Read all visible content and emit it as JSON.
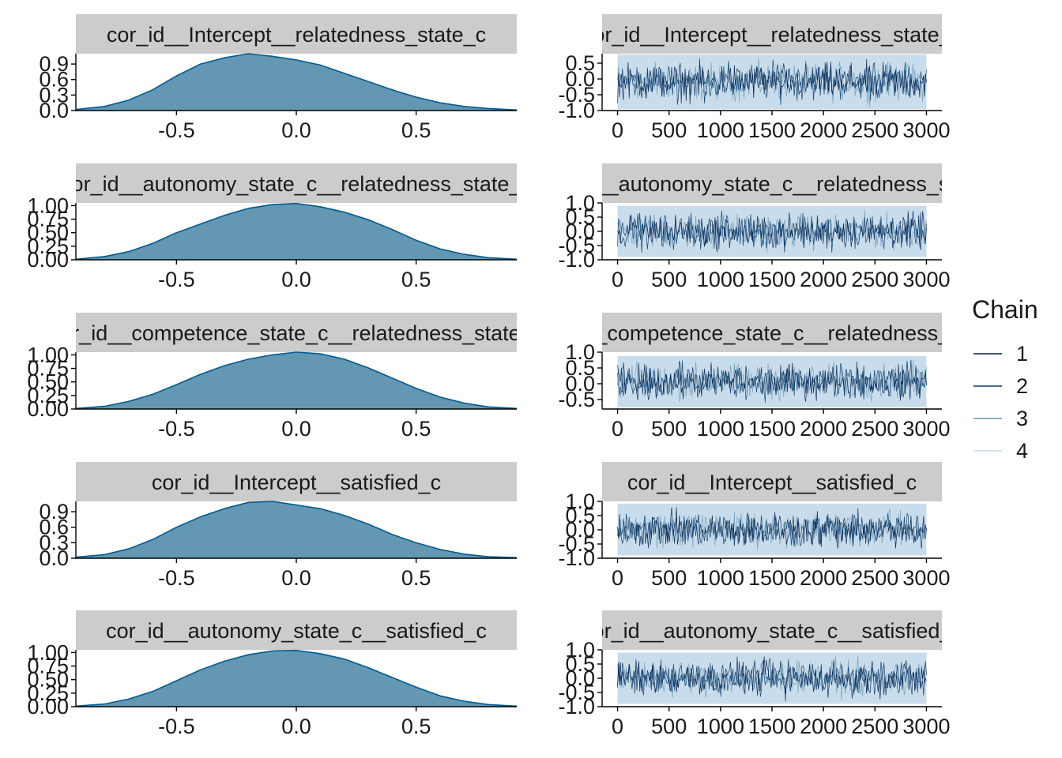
{
  "legend": {
    "title": "Chain",
    "items": [
      {
        "label": "1",
        "color": "#011f4b"
      },
      {
        "label": "2",
        "color": "#03396c"
      },
      {
        "label": "3",
        "color": "#6497b1"
      },
      {
        "label": "4",
        "color": "#c9dceb"
      }
    ]
  },
  "colors": {
    "density_fill": "#6497b1",
    "density_line": "#005b96",
    "strip_bg": "#cccccc"
  },
  "chart_data": [
    {
      "type": "area",
      "title": "cor_id__Intercept__relatedness_state_c",
      "xlim": [
        -0.92,
        0.92
      ],
      "ylim": [
        0,
        1.1
      ],
      "x_ticks": [
        {
          "v": -0.5,
          "label": "-0.5"
        },
        {
          "v": 0.0,
          "label": "0.0"
        },
        {
          "v": 0.5,
          "label": "0.5"
        }
      ],
      "y_ticks": [
        {
          "v": 0.0,
          "label": "0.0"
        },
        {
          "v": 0.3,
          "label": "0.3"
        },
        {
          "v": 0.6,
          "label": "0.6"
        },
        {
          "v": 0.9,
          "label": "0.9"
        }
      ],
      "x": [
        -0.92,
        -0.8,
        -0.7,
        -0.6,
        -0.5,
        -0.4,
        -0.3,
        -0.2,
        -0.1,
        0.0,
        0.1,
        0.2,
        0.3,
        0.4,
        0.5,
        0.6,
        0.7,
        0.8,
        0.92
      ],
      "y": [
        0.02,
        0.08,
        0.2,
        0.4,
        0.67,
        0.9,
        1.02,
        1.1,
        1.05,
        0.98,
        0.88,
        0.72,
        0.56,
        0.4,
        0.26,
        0.15,
        0.08,
        0.04,
        0.01
      ]
    },
    {
      "type": "line",
      "title": "cor_id__Intercept__relatedness_state_c",
      "xlim": [
        -150,
        3150
      ],
      "ylim": [
        -1.0,
        0.8
      ],
      "x_ticks": [
        {
          "v": 0,
          "label": "0"
        },
        {
          "v": 500,
          "label": "500"
        },
        {
          "v": 1000,
          "label": "1000"
        },
        {
          "v": 1500,
          "label": "1500"
        },
        {
          "v": 2000,
          "label": "2000"
        },
        {
          "v": 2500,
          "label": "2500"
        },
        {
          "v": 3000,
          "label": "3000"
        }
      ],
      "y_ticks": [
        {
          "v": -1.0,
          "label": "-1.0"
        },
        {
          "v": -0.5,
          "label": "-0.5"
        },
        {
          "v": 0.0,
          "label": "0.0"
        },
        {
          "v": 0.5,
          "label": "0.5"
        }
      ],
      "band": [
        -0.95,
        0.78
      ]
    },
    {
      "type": "area",
      "title": "cor_id__autonomy_state_c__relatedness_state_c",
      "xlim": [
        -0.92,
        0.92
      ],
      "ylim": [
        0,
        1.05
      ],
      "x_ticks": [
        {
          "v": -0.5,
          "label": "-0.5"
        },
        {
          "v": 0.0,
          "label": "0.0"
        },
        {
          "v": 0.5,
          "label": "0.5"
        }
      ],
      "y_ticks": [
        {
          "v": 0.0,
          "label": "0.00"
        },
        {
          "v": 0.25,
          "label": "0.25"
        },
        {
          "v": 0.5,
          "label": "0.50"
        },
        {
          "v": 0.75,
          "label": "0.75"
        },
        {
          "v": 1.0,
          "label": "1.00"
        }
      ],
      "x": [
        -0.92,
        -0.8,
        -0.7,
        -0.6,
        -0.5,
        -0.4,
        -0.3,
        -0.2,
        -0.1,
        0.0,
        0.1,
        0.2,
        0.3,
        0.4,
        0.5,
        0.6,
        0.7,
        0.8,
        0.92
      ],
      "y": [
        0.01,
        0.06,
        0.15,
        0.3,
        0.5,
        0.66,
        0.82,
        0.95,
        1.02,
        1.04,
        0.98,
        0.88,
        0.74,
        0.56,
        0.36,
        0.2,
        0.1,
        0.04,
        0.01
      ]
    },
    {
      "type": "line",
      "title": "cor_id__autonomy_state_c__relatedness_state_c",
      "xlim": [
        -150,
        3150
      ],
      "ylim": [
        -1.0,
        1.0
      ],
      "x_ticks": [
        {
          "v": 0,
          "label": "0"
        },
        {
          "v": 500,
          "label": "500"
        },
        {
          "v": 1000,
          "label": "1000"
        },
        {
          "v": 1500,
          "label": "1500"
        },
        {
          "v": 2000,
          "label": "2000"
        },
        {
          "v": 2500,
          "label": "2500"
        },
        {
          "v": 3000,
          "label": "3000"
        }
      ],
      "y_ticks": [
        {
          "v": -1.0,
          "label": "-1.0"
        },
        {
          "v": -0.5,
          "label": "-0.5"
        },
        {
          "v": 0.0,
          "label": "0.0"
        },
        {
          "v": 0.5,
          "label": "0.5"
        },
        {
          "v": 1.0,
          "label": "1.0"
        }
      ],
      "band": [
        -0.9,
        0.9
      ]
    },
    {
      "type": "area",
      "title": "cor_id__competence_state_c__relatedness_state_c",
      "xlim": [
        -0.92,
        0.92
      ],
      "ylim": [
        0,
        1.05
      ],
      "x_ticks": [
        {
          "v": -0.5,
          "label": "-0.5"
        },
        {
          "v": 0.0,
          "label": "0.0"
        },
        {
          "v": 0.5,
          "label": "0.5"
        }
      ],
      "y_ticks": [
        {
          "v": 0.0,
          "label": "0.00"
        },
        {
          "v": 0.25,
          "label": "0.25"
        },
        {
          "v": 0.5,
          "label": "0.50"
        },
        {
          "v": 0.75,
          "label": "0.75"
        },
        {
          "v": 1.0,
          "label": "1.00"
        }
      ],
      "x": [
        -0.92,
        -0.8,
        -0.7,
        -0.6,
        -0.5,
        -0.4,
        -0.3,
        -0.2,
        -0.1,
        0.0,
        0.1,
        0.2,
        0.3,
        0.4,
        0.5,
        0.6,
        0.7,
        0.8,
        0.92
      ],
      "y": [
        0.01,
        0.05,
        0.14,
        0.27,
        0.45,
        0.64,
        0.8,
        0.92,
        1.0,
        1.05,
        1.02,
        0.92,
        0.76,
        0.57,
        0.38,
        0.22,
        0.11,
        0.04,
        0.01
      ]
    },
    {
      "type": "line",
      "title": "cor_id__competence_state_c__relatedness_state_c",
      "xlim": [
        -150,
        3150
      ],
      "ylim": [
        -0.8,
        1.0
      ],
      "x_ticks": [
        {
          "v": 0,
          "label": "0"
        },
        {
          "v": 500,
          "label": "500"
        },
        {
          "v": 1000,
          "label": "1000"
        },
        {
          "v": 1500,
          "label": "1500"
        },
        {
          "v": 2000,
          "label": "2000"
        },
        {
          "v": 2500,
          "label": "2500"
        },
        {
          "v": 3000,
          "label": "3000"
        }
      ],
      "y_ticks": [
        {
          "v": -0.5,
          "label": "-0.5"
        },
        {
          "v": 0.0,
          "label": "0.0"
        },
        {
          "v": 0.5,
          "label": "0.5"
        },
        {
          "v": 1.0,
          "label": "1.0"
        }
      ],
      "band": [
        -0.75,
        0.88
      ]
    },
    {
      "type": "area",
      "title": "cor_id__Intercept__satisfied_c",
      "xlim": [
        -0.92,
        0.92
      ],
      "ylim": [
        0,
        1.1
      ],
      "x_ticks": [
        {
          "v": -0.5,
          "label": "-0.5"
        },
        {
          "v": 0.0,
          "label": "0.0"
        },
        {
          "v": 0.5,
          "label": "0.5"
        }
      ],
      "y_ticks": [
        {
          "v": 0.0,
          "label": "0.0"
        },
        {
          "v": 0.3,
          "label": "0.3"
        },
        {
          "v": 0.6,
          "label": "0.6"
        },
        {
          "v": 0.9,
          "label": "0.9"
        }
      ],
      "x": [
        -0.92,
        -0.8,
        -0.7,
        -0.6,
        -0.5,
        -0.4,
        -0.3,
        -0.2,
        -0.1,
        0.0,
        0.1,
        0.2,
        0.3,
        0.4,
        0.5,
        0.6,
        0.7,
        0.8,
        0.92
      ],
      "y": [
        0.02,
        0.07,
        0.18,
        0.36,
        0.6,
        0.8,
        0.96,
        1.08,
        1.1,
        1.03,
        0.96,
        0.83,
        0.66,
        0.46,
        0.3,
        0.17,
        0.08,
        0.03,
        0.01
      ]
    },
    {
      "type": "line",
      "title": "cor_id__Intercept__satisfied_c",
      "xlim": [
        -150,
        3150
      ],
      "ylim": [
        -1.0,
        1.0
      ],
      "x_ticks": [
        {
          "v": 0,
          "label": "0"
        },
        {
          "v": 500,
          "label": "500"
        },
        {
          "v": 1000,
          "label": "1000"
        },
        {
          "v": 1500,
          "label": "1500"
        },
        {
          "v": 2000,
          "label": "2000"
        },
        {
          "v": 2500,
          "label": "2500"
        },
        {
          "v": 3000,
          "label": "3000"
        }
      ],
      "y_ticks": [
        {
          "v": -1.0,
          "label": "-1.0"
        },
        {
          "v": -0.5,
          "label": "-0.5"
        },
        {
          "v": 0.0,
          "label": "0.0"
        },
        {
          "v": 0.5,
          "label": "0.5"
        },
        {
          "v": 1.0,
          "label": "1.0"
        }
      ],
      "band": [
        -0.9,
        0.92
      ]
    },
    {
      "type": "area",
      "title": "cor_id__autonomy_state_c__satisfied_c",
      "xlim": [
        -0.92,
        0.92
      ],
      "ylim": [
        0,
        1.05
      ],
      "x_ticks": [
        {
          "v": -0.5,
          "label": "-0.5"
        },
        {
          "v": 0.0,
          "label": "0.0"
        },
        {
          "v": 0.5,
          "label": "0.5"
        }
      ],
      "y_ticks": [
        {
          "v": 0.0,
          "label": "0.00"
        },
        {
          "v": 0.25,
          "label": "0.25"
        },
        {
          "v": 0.5,
          "label": "0.50"
        },
        {
          "v": 0.75,
          "label": "0.75"
        },
        {
          "v": 1.0,
          "label": "1.00"
        }
      ],
      "x": [
        -0.92,
        -0.8,
        -0.7,
        -0.6,
        -0.5,
        -0.4,
        -0.3,
        -0.2,
        -0.1,
        0.0,
        0.1,
        0.2,
        0.3,
        0.4,
        0.5,
        0.6,
        0.7,
        0.8,
        0.92
      ],
      "y": [
        0.01,
        0.05,
        0.14,
        0.28,
        0.48,
        0.68,
        0.84,
        0.96,
        1.03,
        1.04,
        0.98,
        0.88,
        0.72,
        0.54,
        0.36,
        0.2,
        0.1,
        0.04,
        0.01
      ]
    },
    {
      "type": "line",
      "title": "cor_id__autonomy_state_c__satisfied_c",
      "xlim": [
        -150,
        3150
      ],
      "ylim": [
        -1.0,
        1.0
      ],
      "x_ticks": [
        {
          "v": 0,
          "label": "0"
        },
        {
          "v": 500,
          "label": "500"
        },
        {
          "v": 1000,
          "label": "1000"
        },
        {
          "v": 1500,
          "label": "1500"
        },
        {
          "v": 2000,
          "label": "2000"
        },
        {
          "v": 2500,
          "label": "2500"
        },
        {
          "v": 3000,
          "label": "3000"
        }
      ],
      "y_ticks": [
        {
          "v": -1.0,
          "label": "-1.0"
        },
        {
          "v": -0.5,
          "label": "-0.5"
        },
        {
          "v": 0.0,
          "label": "0.0"
        },
        {
          "v": 0.5,
          "label": "0.5"
        },
        {
          "v": 1.0,
          "label": "1.0"
        }
      ],
      "band": [
        -0.9,
        0.9
      ]
    }
  ]
}
